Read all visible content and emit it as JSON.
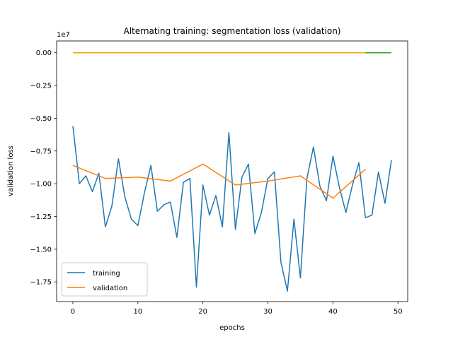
{
  "chart_data": {
    "type": "line",
    "title": "Alternating training: segmentation loss (validation)",
    "xlabel": "epochs",
    "ylabel": "validation loss",
    "y_offset_label": "1e7",
    "xlim": [
      -2.5,
      51.5
    ],
    "ylim": [
      -1.9,
      0.09
    ],
    "x_ticks": [
      0,
      10,
      20,
      30,
      40,
      50
    ],
    "x_tick_labels": [
      "0",
      "10",
      "20",
      "30",
      "40",
      "50"
    ],
    "y_ticks": [
      0.0,
      -0.25,
      -0.5,
      -0.75,
      -1.0,
      -1.25,
      -1.5,
      -1.75
    ],
    "y_tick_labels": [
      "0.00",
      "−0.25",
      "−0.50",
      "−0.75",
      "−1.00",
      "−1.25",
      "−1.50",
      "−1.75"
    ],
    "grid": false,
    "legend_position": "lower-left",
    "series": [
      {
        "name": "training",
        "color": "#1f77b4",
        "x": [
          0,
          1,
          2,
          3,
          4,
          5,
          6,
          7,
          8,
          9,
          10,
          11,
          12,
          13,
          14,
          15,
          16,
          17,
          18,
          19,
          20,
          21,
          22,
          23,
          24,
          25,
          26,
          27,
          28,
          29,
          30,
          31,
          32,
          33,
          34,
          35,
          36,
          37,
          38,
          39,
          40,
          41,
          42,
          43,
          44,
          45,
          46,
          47,
          48,
          49
        ],
        "y": [
          -0.56,
          -1.0,
          -0.94,
          -1.06,
          -0.92,
          -1.33,
          -1.17,
          -0.81,
          -1.1,
          -1.27,
          -1.32,
          -1.07,
          -0.86,
          -1.21,
          -1.16,
          -1.14,
          -1.41,
          -0.99,
          -0.96,
          -1.79,
          -1.01,
          -1.24,
          -1.09,
          -1.33,
          -0.61,
          -1.35,
          -0.95,
          -0.85,
          -1.38,
          -1.22,
          -0.96,
          -0.91,
          -1.6,
          -1.82,
          -1.27,
          -1.72,
          -0.96,
          -0.72,
          -1.02,
          -1.13,
          -0.79,
          -1.03,
          -1.22,
          -1.01,
          -0.84,
          -1.26,
          -1.24,
          -0.91,
          -1.15,
          -0.82
        ]
      },
      {
        "name": "validation",
        "color": "#ff7f0e",
        "x": [
          0,
          5,
          10,
          15,
          20,
          25,
          30,
          35,
          40,
          45
        ],
        "y": [
          -0.86,
          -0.96,
          -0.95,
          -0.98,
          -0.85,
          -1.01,
          -0.98,
          -0.94,
          -1.11,
          -0.89
        ]
      },
      {
        "name": "",
        "color": "#2ca02c",
        "x": [
          45,
          49
        ],
        "y": [
          0.0,
          0.0
        ]
      },
      {
        "name": "",
        "color": "#f0a500",
        "x": [
          0,
          45
        ],
        "y": [
          0.0,
          0.0
        ]
      }
    ]
  }
}
